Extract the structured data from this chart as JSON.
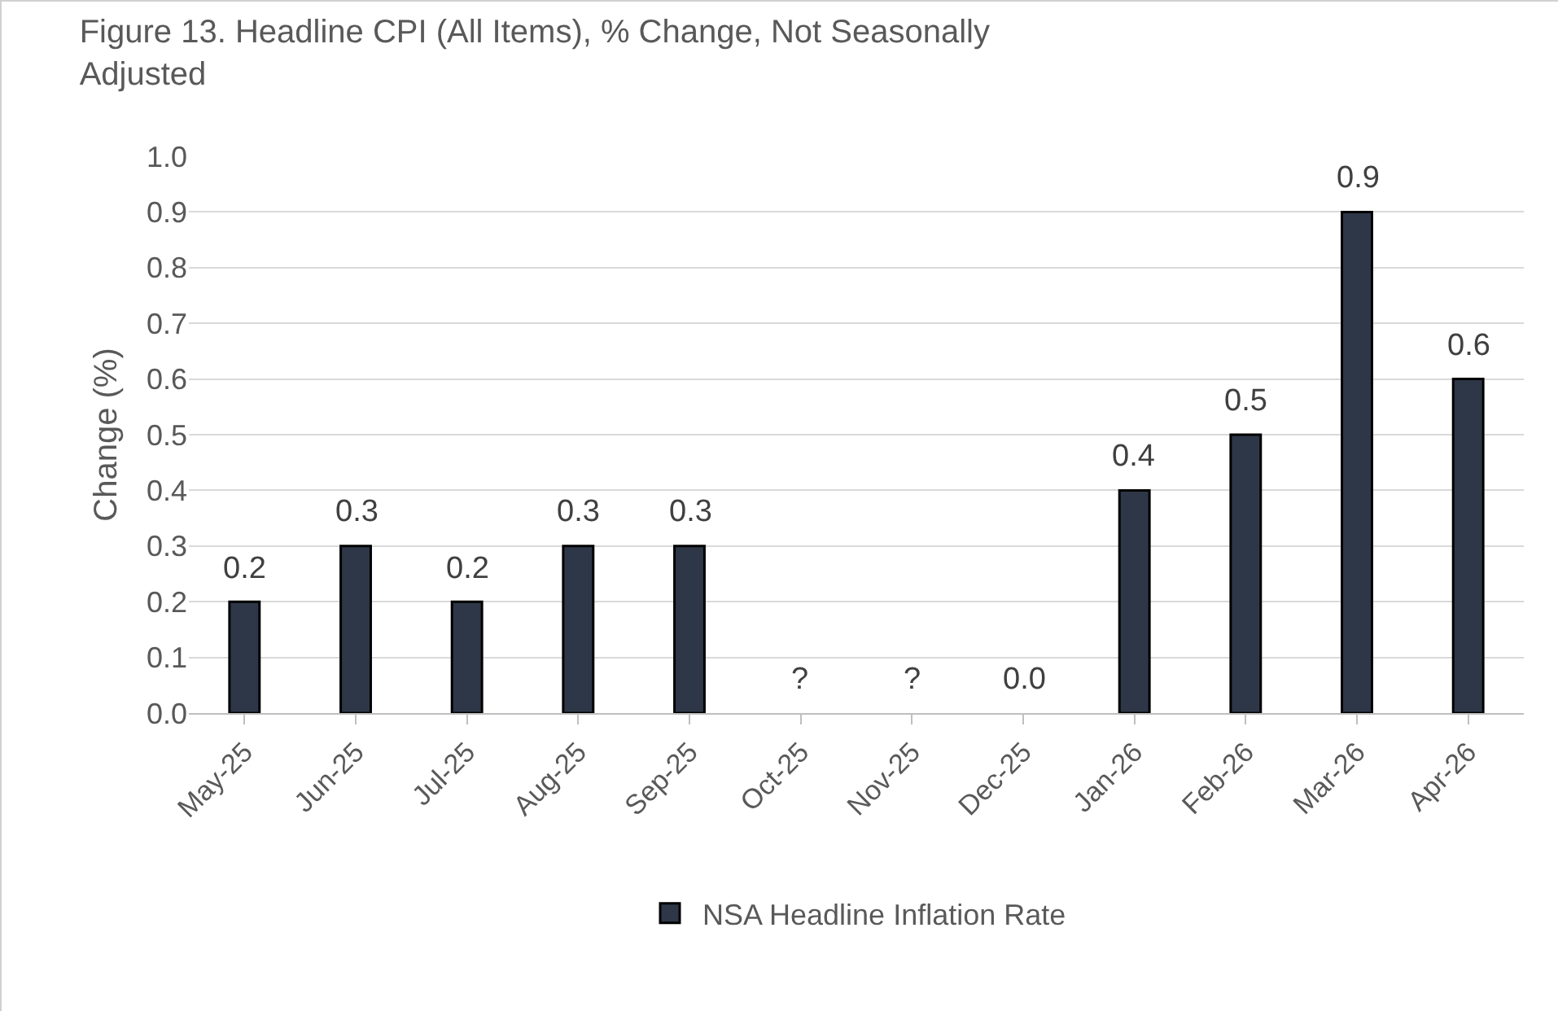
{
  "chart_data": {
    "type": "bar",
    "title": "Figure 13. Headline CPI (All Items), % Change, Not Seasonally Adjusted",
    "ylabel": "Change (%)",
    "categories": [
      "May-25",
      "Jun-25",
      "Jul-25",
      "Aug-25",
      "Sep-25",
      "Oct-25",
      "Nov-25",
      "Dec-25",
      "Jan-26",
      "Feb-26",
      "Mar-26",
      "Apr-26"
    ],
    "series": [
      {
        "name": "NSA Headline Inflation Rate",
        "color": "#2e3747",
        "values": [
          0.2,
          0.3,
          0.2,
          0.3,
          0.3,
          null,
          null,
          0.0,
          0.4,
          0.5,
          0.9,
          0.6
        ],
        "value_labels": [
          "0.2",
          "0.3",
          "0.2",
          "0.3",
          "0.3",
          "?",
          "?",
          "0.0",
          "0.4",
          "0.5",
          "0.9",
          "0.6"
        ]
      }
    ],
    "ylim": [
      0,
      1.0
    ],
    "yticks": [
      {
        "value": 0,
        "label": "0.0"
      },
      {
        "value": 0.1,
        "label": "0.1"
      },
      {
        "value": 0.2,
        "label": "0.2"
      },
      {
        "value": 0.3,
        "label": "0.3"
      },
      {
        "value": 0.4,
        "label": "0.4"
      },
      {
        "value": 0.5,
        "label": "0.5"
      },
      {
        "value": 0.6,
        "label": "0.6"
      },
      {
        "value": 0.7,
        "label": "0.7"
      },
      {
        "value": 0.8,
        "label": "0.8"
      },
      {
        "value": 0.9,
        "label": "0.9"
      },
      {
        "value": 1.0,
        "label": "1.0"
      }
    ],
    "grid": "y",
    "legend": "bottom"
  }
}
